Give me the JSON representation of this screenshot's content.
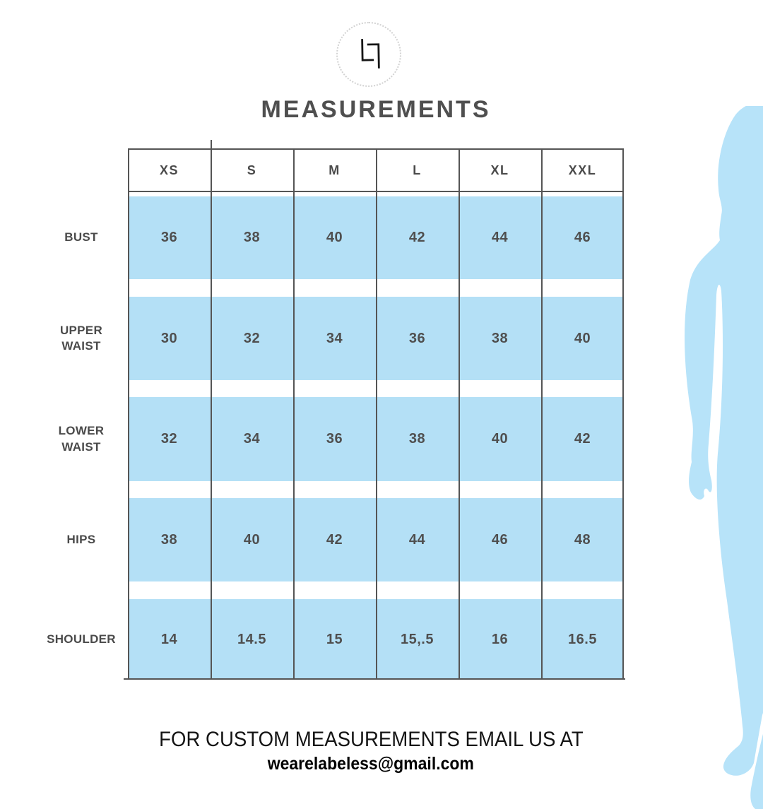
{
  "brand": {
    "logo_icon": "interlocked-L-monogram"
  },
  "chart_data": {
    "type": "table",
    "title": "MEASUREMENTS",
    "columns": [
      "XS",
      "S",
      "M",
      "L",
      "XL",
      "XXL"
    ],
    "rows": [
      {
        "label": "BUST",
        "label_lines": [
          "BUST"
        ],
        "values": [
          "36",
          "38",
          "40",
          "42",
          "44",
          "46"
        ]
      },
      {
        "label": "UPPER WAIST",
        "label_lines": [
          "UPPER",
          "WAIST"
        ],
        "values": [
          "30",
          "32",
          "34",
          "36",
          "38",
          "40"
        ]
      },
      {
        "label": "LOWER WAIST",
        "label_lines": [
          "LOWER",
          "WAIST"
        ],
        "values": [
          "32",
          "34",
          "36",
          "38",
          "40",
          "42"
        ]
      },
      {
        "label": "HIPS",
        "label_lines": [
          "HIPS"
        ],
        "values": [
          "38",
          "40",
          "42",
          "44",
          "46",
          "48"
        ]
      },
      {
        "label": "SHOULDER",
        "label_lines": [
          "SHOULDER"
        ],
        "values": [
          "14",
          "14.5",
          "15",
          "15,.5",
          "16",
          "16.5"
        ]
      }
    ]
  },
  "footer": {
    "line1": "FOR CUSTOM MEASUREMENTS EMAIL US AT",
    "email": "wearelabeless@gmail.com"
  },
  "colors": {
    "cell_blue": "#b4e0f6",
    "silhouette_blue": "#b7e3f9",
    "border_gray": "#555555",
    "title_gray": "#4f4f4f"
  }
}
